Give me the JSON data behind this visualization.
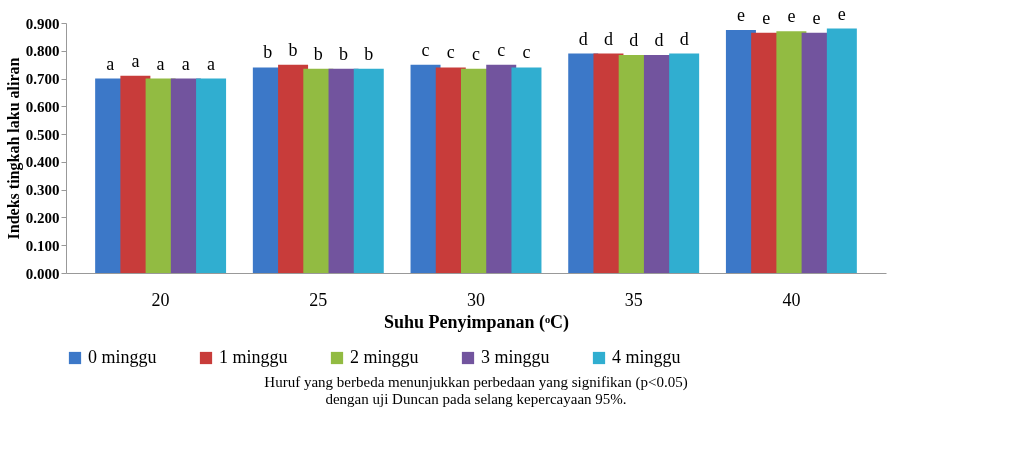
{
  "chart_data": {
    "type": "bar",
    "xlabel": "Suhu Penyimpanan (ᵒC)",
    "ylabel": "Indeks tingkah laku aliran",
    "categories": [
      "20",
      "25",
      "30",
      "35",
      "40"
    ],
    "series": [
      {
        "name": "0 minggu",
        "color": "#3c78c8",
        "values": [
          0.7,
          0.74,
          0.75,
          0.79,
          0.875
        ]
      },
      {
        "name": "1 minggu",
        "color": "#c83c3a",
        "values": [
          0.71,
          0.75,
          0.74,
          0.79,
          0.865
        ]
      },
      {
        "name": "2 minggu",
        "color": "#92bb42",
        "values": [
          0.7,
          0.735,
          0.735,
          0.785,
          0.87
        ]
      },
      {
        "name": "3 minggu",
        "color": "#72549e",
        "values": [
          0.7,
          0.735,
          0.75,
          0.785,
          0.865
        ]
      },
      {
        "name": "4 minggu",
        "color": "#30aed0",
        "values": [
          0.7,
          0.735,
          0.74,
          0.79,
          0.88
        ]
      }
    ],
    "ylim": [
      0,
      0.9
    ],
    "yticks": [
      {
        "value": 0,
        "label": "0.000"
      },
      {
        "value": 0.1,
        "label": "0.100"
      },
      {
        "value": 0.2,
        "label": "0.200"
      },
      {
        "value": 0.3,
        "label": "0.300"
      },
      {
        "value": 0.4,
        "label": "0.400"
      },
      {
        "value": 0.5,
        "label": "0.500"
      },
      {
        "value": 0.6,
        "label": "0.600"
      },
      {
        "value": 0.7,
        "label": "0.700"
      },
      {
        "value": 0.8,
        "label": "0.800"
      },
      {
        "value": 0.9,
        "label": "0.900"
      }
    ],
    "grid": false,
    "legend": "bottom",
    "annotations": [
      {
        "text": "a",
        "x": "20",
        "y": 0.7
      },
      {
        "text": "a",
        "x": "20",
        "y": 0.71
      },
      {
        "text": "a",
        "x": "20",
        "y": 0.7
      },
      {
        "text": "a",
        "x": "20",
        "y": 0.7
      },
      {
        "text": "a",
        "x": "20",
        "y": 0.7
      },
      {
        "text": "b",
        "x": "25",
        "y": 0.74
      },
      {
        "text": "b",
        "x": "25",
        "y": 0.75
      },
      {
        "text": "b",
        "x": "25",
        "y": 0.735
      },
      {
        "text": "b",
        "x": "25",
        "y": 0.735
      },
      {
        "text": "b",
        "x": "25",
        "y": 0.735
      },
      {
        "text": "c",
        "x": "30",
        "y": 0.75
      },
      {
        "text": "c",
        "x": "30",
        "y": 0.74
      },
      {
        "text": "c",
        "x": "30",
        "y": 0.735
      },
      {
        "text": "c",
        "x": "30",
        "y": 0.75
      },
      {
        "text": "c",
        "x": "30",
        "y": 0.74
      },
      {
        "text": "d",
        "x": "35",
        "y": 0.79
      },
      {
        "text": "d",
        "x": "35",
        "y": 0.79
      },
      {
        "text": "d",
        "x": "35",
        "y": 0.785
      },
      {
        "text": "d",
        "x": "35",
        "y": 0.785
      },
      {
        "text": "d",
        "x": "35",
        "y": 0.79
      },
      {
        "text": "e",
        "x": "40",
        "y": 0.875
      },
      {
        "text": "e",
        "x": "40",
        "y": 0.865
      },
      {
        "text": "e",
        "x": "40",
        "y": 0.87
      },
      {
        "text": "e",
        "x": "40",
        "y": 0.865
      },
      {
        "text": "e",
        "x": "40",
        "y": 0.88
      },
      "Huruf yang berbeda menunjukkan perbedaan yang signifikan (p<0.05)",
      "dengan uji Duncan pada selang kepercayaan 95%."
    ]
  }
}
